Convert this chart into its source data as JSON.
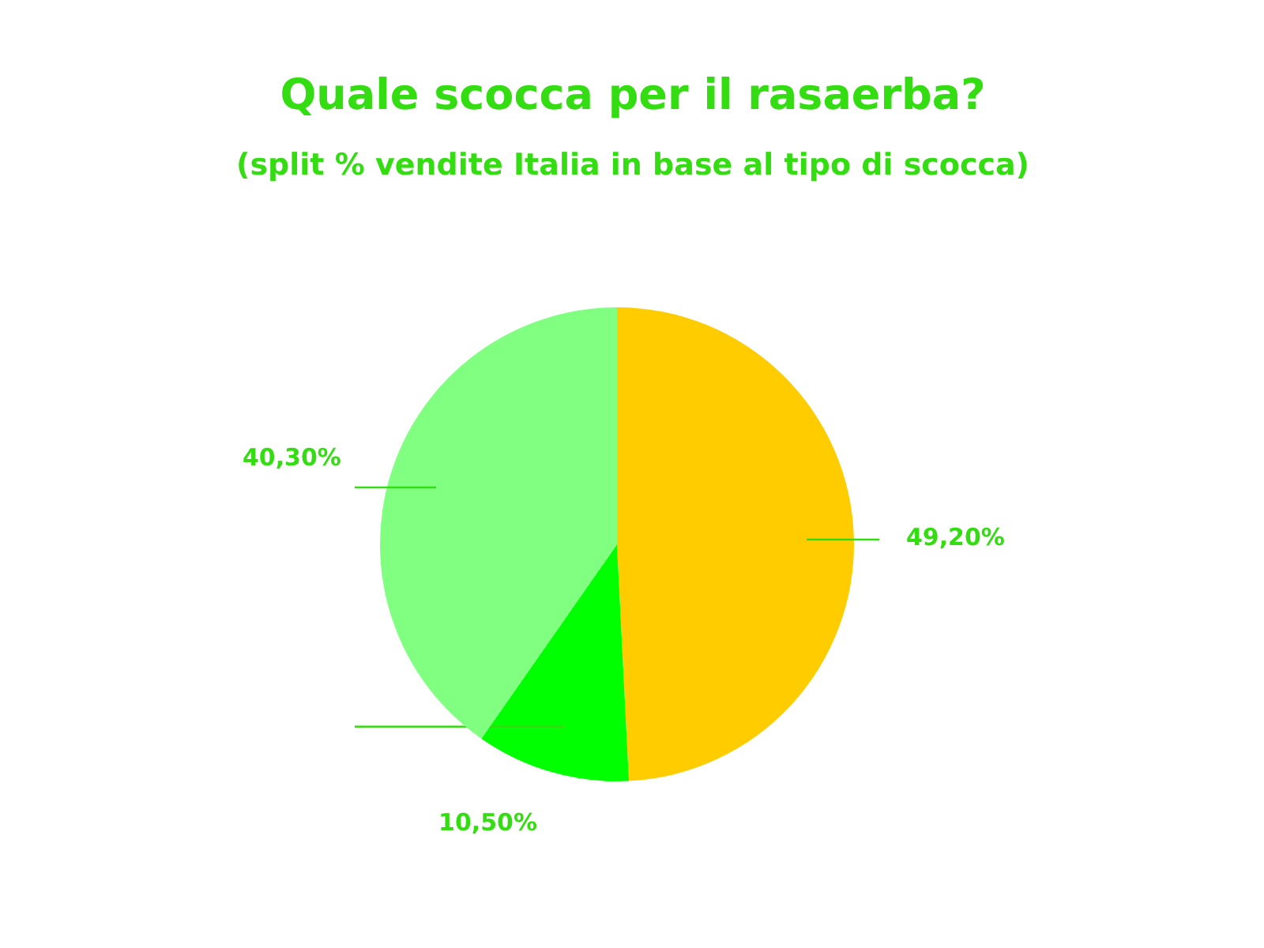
{
  "chart_data": {
    "type": "pie",
    "title": "Quale scocca per il rasaerba?",
    "subtitle": "(split % vendite Italia in base al tipo di scocca)",
    "categories": [
      null,
      null,
      null
    ],
    "values": [
      49.2,
      10.5,
      40.3
    ],
    "colors": [
      "#ffcc00",
      "#00ff00",
      "#80ff80"
    ],
    "value_labels": [
      "49,20%",
      "10,50%",
      "40,30%"
    ]
  }
}
